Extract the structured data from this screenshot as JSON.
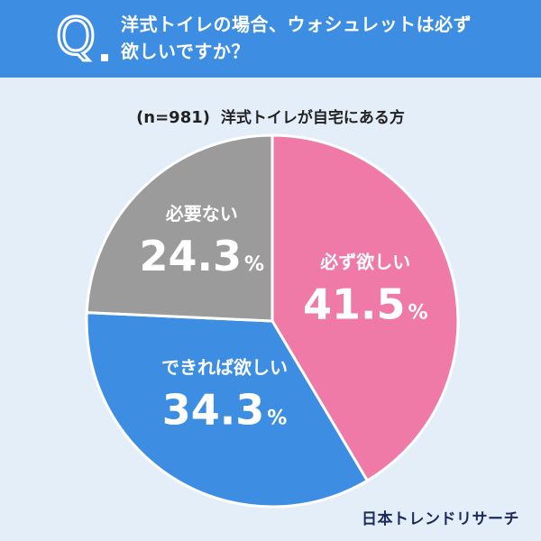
{
  "header": {
    "q_label": "Q",
    "question_line1": "洋式トイレの場合、ウォシュレットは必ず",
    "question_line2": "欲しいですか？"
  },
  "sample": {
    "n_label": "(n=981)",
    "subject": "洋式トイレが自宅にある方"
  },
  "logo": "日本トレンドリサーチ",
  "colors": {
    "header": "#3d8ee2",
    "pink": "#ef7aa8",
    "blue": "#3d8ee2",
    "gray": "#9b9b9b",
    "background": "#e4eef9"
  },
  "chart_data": {
    "type": "pie",
    "title": "",
    "slices": [
      {
        "label": "必ず欲しい",
        "value": 41.5,
        "display": "41.5",
        "unit": "%",
        "color": "#ef7aa8"
      },
      {
        "label": "できれば欲しい",
        "value": 34.3,
        "display": "34.3",
        "unit": "%",
        "color": "#3d8ee2"
      },
      {
        "label": "必要ない",
        "value": 24.3,
        "display": "24.3",
        "unit": "%",
        "color": "#9b9b9b"
      }
    ],
    "start_angle_deg": 0,
    "direction": "clockwise",
    "legend": "none"
  }
}
